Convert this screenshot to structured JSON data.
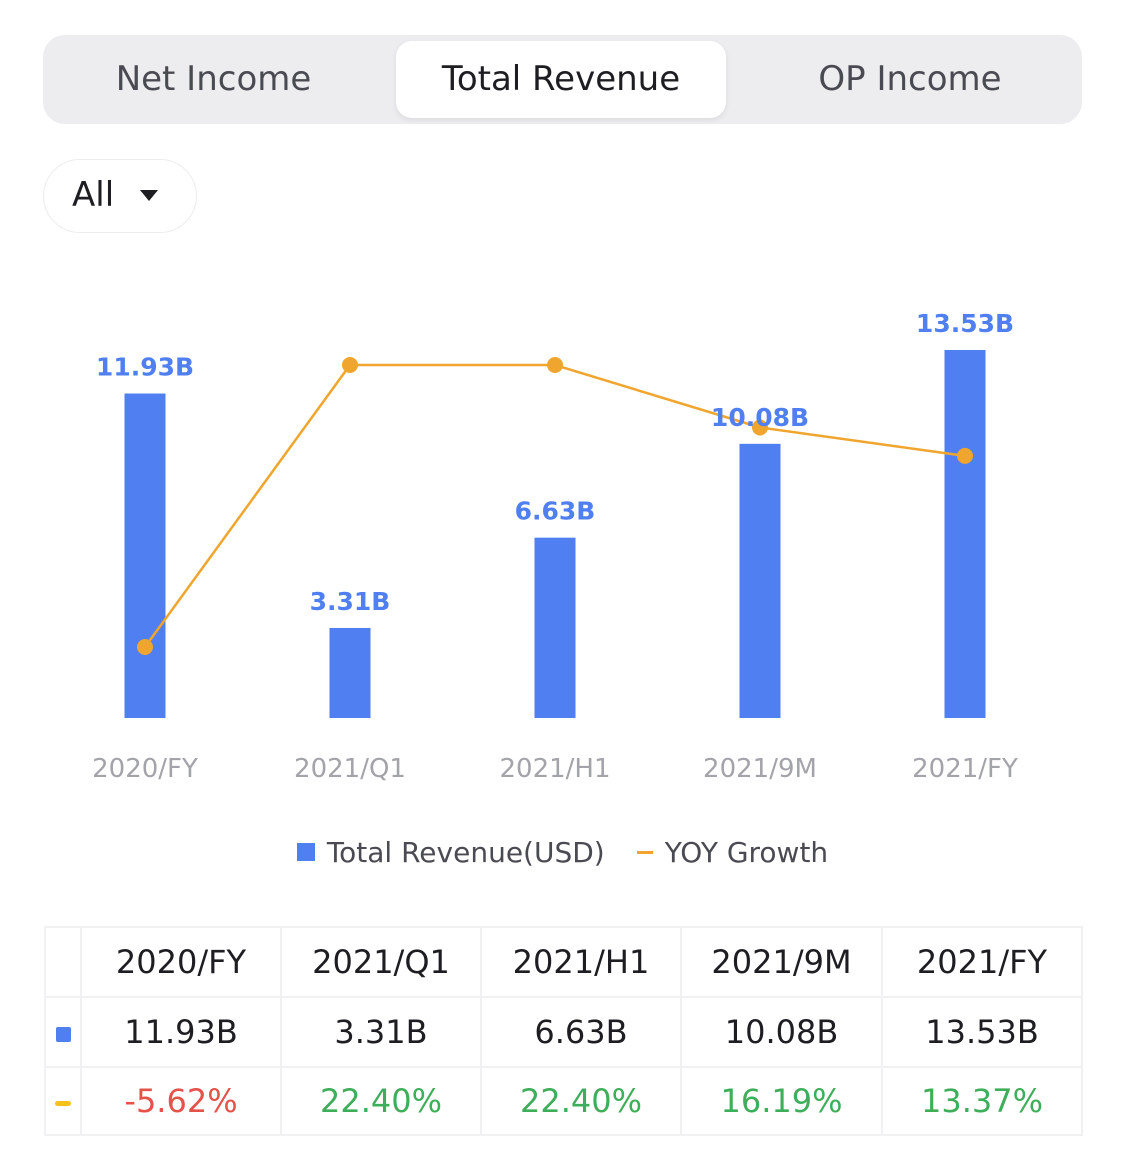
{
  "tabs": [
    {
      "label": "Net Income",
      "active": false
    },
    {
      "label": "Total Revenue",
      "active": true
    },
    {
      "label": "OP Income",
      "active": false
    }
  ],
  "period_filter": {
    "selected": "All"
  },
  "colors": {
    "bar": "#4f7ff1",
    "line": "#f0a52e",
    "negative": "#e5524a",
    "positive": "#3fae5a"
  },
  "chart_data": {
    "type": "bar",
    "categories": [
      "2020/FY",
      "2021/Q1",
      "2021/H1",
      "2021/9M",
      "2021/FY"
    ],
    "series": [
      {
        "name": "Total Revenue(USD)",
        "type": "bar",
        "values": [
          11.93,
          3.31,
          6.63,
          10.08,
          13.53
        ],
        "labels": [
          "11.93B",
          "3.31B",
          "6.63B",
          "10.08B",
          "13.53B"
        ]
      },
      {
        "name": "YOY Growth",
        "type": "line",
        "values": [
          -5.62,
          22.4,
          22.4,
          16.19,
          13.37
        ]
      }
    ],
    "legend_position": "bottom"
  },
  "legend": {
    "bar_label": "Total Revenue(USD)",
    "line_label": "YOY Growth"
  },
  "table": {
    "headers": [
      "2020/FY",
      "2021/Q1",
      "2021/H1",
      "2021/9M",
      "2021/FY"
    ],
    "revenue": [
      "11.93B",
      "3.31B",
      "6.63B",
      "10.08B",
      "13.53B"
    ],
    "growth": [
      "-5.62%",
      "22.40%",
      "22.40%",
      "16.19%",
      "13.37%"
    ]
  }
}
